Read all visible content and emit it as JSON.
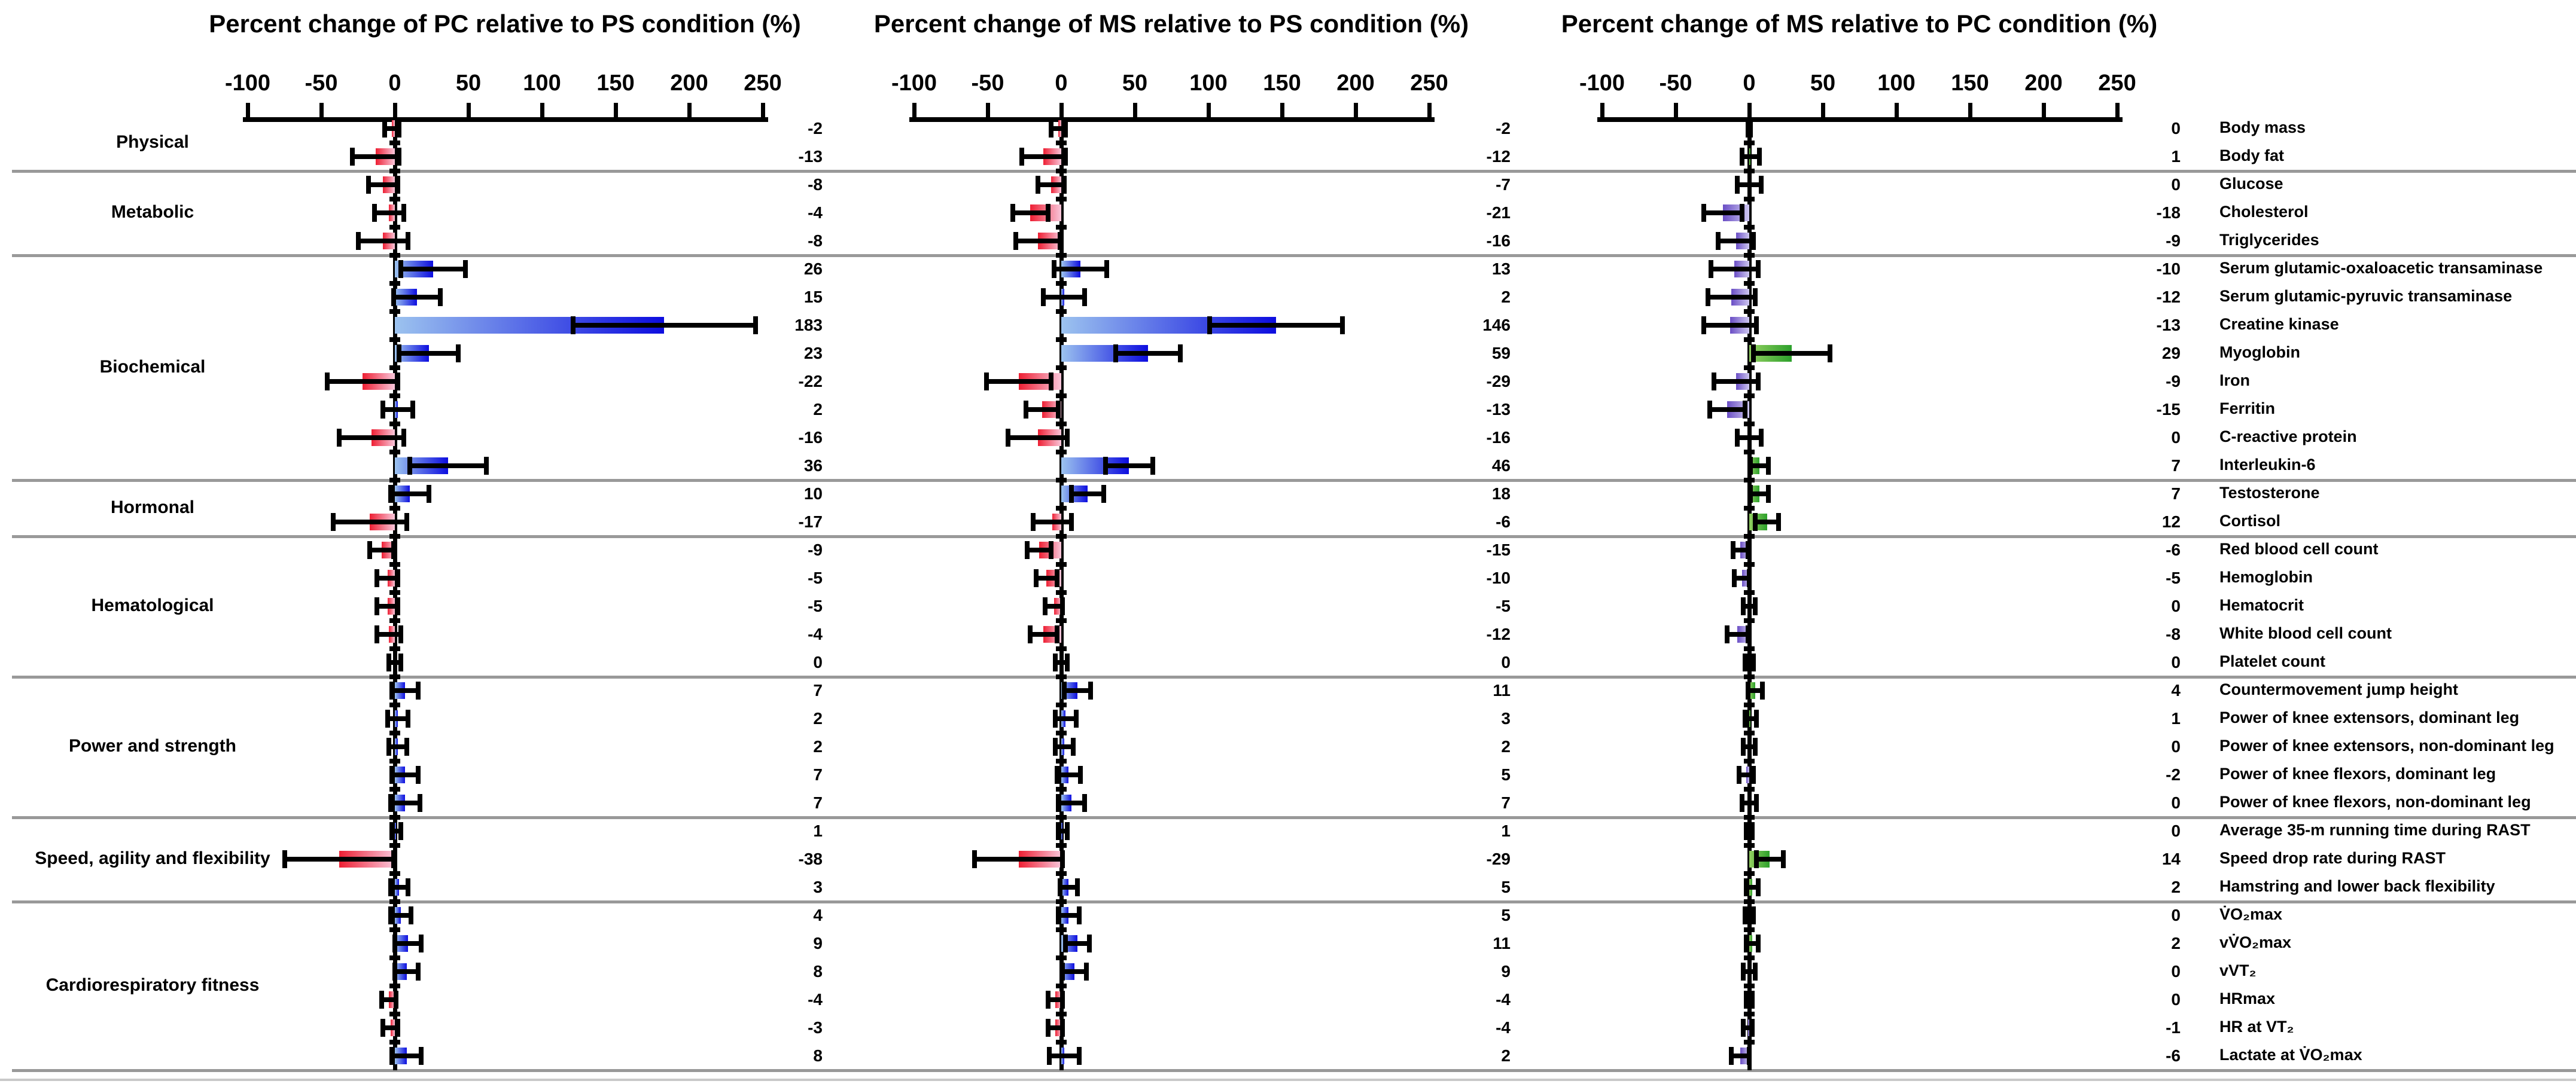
{
  "chart_data": {
    "type": "bar",
    "orientation": "horizontal-diverging",
    "axis_range": [
      -100,
      250
    ],
    "axis_ticks": [
      -100,
      -50,
      0,
      50,
      100,
      150,
      200,
      250
    ],
    "grid": false,
    "error_bars": true,
    "categories": [
      "Body mass",
      "Body fat",
      "Glucose",
      "Cholesterol",
      "Triglycerides",
      "Serum glutamic-oxaloacetic  transaminase",
      "Serum glutamic-pyruvic transaminase",
      "Creatine kinase",
      "Myoglobin",
      "Iron",
      "Ferritin",
      "C-reactive protein",
      "Interleukin-6",
      "Testosterone",
      "Cortisol",
      "Red blood cell count",
      "Hemoglobin",
      "Hematocrit",
      "White blood cell count",
      "Platelet count",
      "Countermovement jump height",
      "Power of knee extensors, dominant leg",
      "Power of knee extensors, non-dominant leg",
      "Power of knee flexors, dominant leg",
      "Power of knee flexors, non-dominant leg",
      "Average 35-m running time during RAST",
      "Speed drop rate during RAST",
      "Hamstring and lower back flexibility",
      "V̇O₂max",
      "vV̇O₂max",
      "vVT₂",
      "HRmax",
      "HR at VT₂",
      "Lactate at V̇O₂max"
    ],
    "groups": [
      {
        "label": "Physical",
        "start": 0,
        "end": 1
      },
      {
        "label": "Metabolic",
        "start": 2,
        "end": 4
      },
      {
        "label": "Biochemical",
        "start": 5,
        "end": 12
      },
      {
        "label": "Hormonal",
        "start": 13,
        "end": 14
      },
      {
        "label": "Hematological",
        "start": 15,
        "end": 19
      },
      {
        "label": "Power and strength",
        "start": 20,
        "end": 24
      },
      {
        "label": "Speed, agility and flexibility",
        "start": 25,
        "end": 27
      },
      {
        "label": "Cardiorespiratory  fitness",
        "start": 28,
        "end": 33
      }
    ],
    "series": [
      {
        "name": "Percent change of PC relative to PS condition (%)",
        "values": [
          -2,
          -13,
          -8,
          -4,
          -8,
          26,
          15,
          183,
          23,
          -22,
          2,
          -16,
          36,
          10,
          -17,
          -9,
          -5,
          -5,
          -4,
          0,
          7,
          2,
          2,
          7,
          7,
          1,
          -38,
          3,
          4,
          9,
          8,
          -4,
          -3,
          8
        ],
        "errors": [
          5,
          16,
          10,
          10,
          17,
          22,
          16,
          62,
          20,
          24,
          10,
          22,
          26,
          13,
          25,
          8,
          7,
          7,
          8,
          4,
          9,
          7,
          6,
          9,
          10,
          3,
          37,
          6,
          7,
          9,
          8,
          5,
          5,
          10
        ],
        "positive_color_dark": "#0d0ddf",
        "positive_color_light": "#9cc3ef",
        "negative_color_dark": "#ee1f33",
        "negative_color_light": "#f9c6da"
      },
      {
        "name": "Percent change of MS relative to PS condition (%)",
        "values": [
          -2,
          -12,
          -7,
          -21,
          -16,
          13,
          2,
          146,
          59,
          -29,
          -13,
          -16,
          46,
          18,
          -6,
          -15,
          -10,
          -5,
          -12,
          0,
          11,
          3,
          2,
          5,
          7,
          1,
          -29,
          5,
          5,
          11,
          9,
          -4,
          -4,
          2
        ],
        "errors": [
          5,
          15,
          9,
          12,
          15,
          18,
          14,
          45,
          22,
          22,
          11,
          20,
          16,
          11,
          13,
          8,
          7,
          6,
          9,
          4,
          9,
          7,
          6,
          8,
          9,
          3,
          30,
          6,
          7,
          8,
          8,
          5,
          5,
          10
        ],
        "positive_color_dark": "#0d0ddf",
        "positive_color_light": "#9cc3ef",
        "negative_color_dark": "#ee1f33",
        "negative_color_light": "#f9c6da"
      },
      {
        "name": "Percent change of MS relative to PC condition (%)",
        "values": [
          0,
          1,
          0,
          -18,
          -9,
          -10,
          -12,
          -13,
          29,
          -9,
          -15,
          0,
          7,
          7,
          12,
          -6,
          -5,
          0,
          -8,
          0,
          4,
          1,
          0,
          -2,
          0,
          0,
          14,
          2,
          0,
          2,
          0,
          0,
          -1,
          -6
        ],
        "errors": [
          1,
          6,
          8,
          13,
          12,
          16,
          16,
          18,
          26,
          15,
          12,
          8,
          6,
          6,
          8,
          5,
          5,
          4,
          7,
          3,
          5,
          4,
          4,
          5,
          5,
          2,
          9,
          4,
          3,
          4,
          4,
          2,
          3,
          6
        ],
        "positive_color_dark": "#2ca02b",
        "positive_color_light": "#93d061",
        "negative_color_dark": "#6a4ec5",
        "negative_color_light": "#cdc6f0"
      }
    ],
    "colors": {
      "axis": "#000000",
      "error_bar": "#000000",
      "group_separator": "#999999"
    },
    "legend_position": "none"
  }
}
